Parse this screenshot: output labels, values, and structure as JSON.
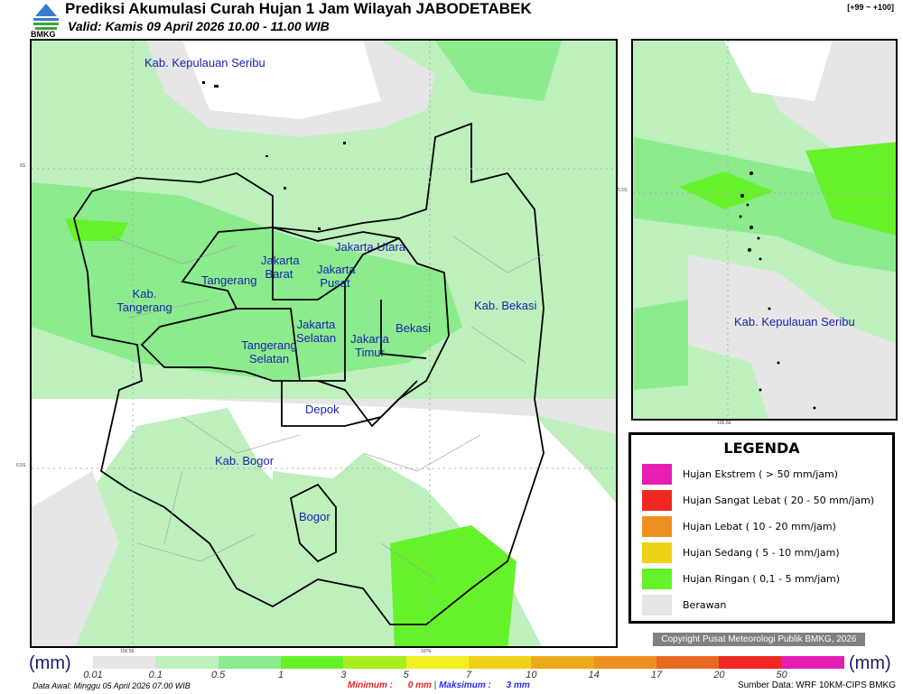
{
  "header": {
    "title": "Prediksi Akumulasi Curah Hujan 1 Jam Wilayah JABODETABEK",
    "valid": "Valid: Kamis 09 April 2026 10.00 - 11.00 WIB",
    "range_code": "[+99 ~ +100]",
    "logo_text": "BMKG"
  },
  "main_map": {
    "regions": [
      "Kab. Kepulauan Seribu",
      "Jakarta Utara",
      "Jakarta Barat",
      "Jakarta Pusat",
      "Tangerang",
      "Kab. Tangerang",
      "Kab. Bekasi",
      "Jakarta Selatan",
      "Jakarta Timur",
      "Bekasi",
      "Tangerang Selatan",
      "Depok",
      "Kab. Bogor",
      "Bogor"
    ],
    "lat_ticks": [
      "6S",
      "6.5S"
    ],
    "lon_ticks": [
      "106.5E",
      "107E"
    ]
  },
  "inset_map": {
    "region": "Kab. Kepulauan Seribu",
    "lat_tick": "5.5S",
    "lon_tick": "106.6E"
  },
  "legend": {
    "title": "LEGENDA",
    "items": [
      {
        "label": "Hujan Ekstrem ( > 50 mm/jam)",
        "color": "#e61eb4"
      },
      {
        "label": "Hujan Sangat Lebat ( 20 - 50 mm/jam)",
        "color": "#ee2820"
      },
      {
        "label": "Hujan Lebat ( 10 - 20 mm/jam)",
        "color": "#ee9020"
      },
      {
        "label": "Hujan Sedang ( 5 - 10 mm/jam)",
        "color": "#eed218"
      },
      {
        "label": "Hujan Ringan ( 0,1 - 5 mm/jam)",
        "color": "#66f22a"
      },
      {
        "label": "Berawan",
        "color": "#e6e6e6"
      }
    ]
  },
  "copyright": "Copyright Pusat Meteorologi Publik BMKG, 2026",
  "colorbar": {
    "unit": "(mm)",
    "ticks": [
      "0.01",
      "0.1",
      "0.5",
      "1",
      "3",
      "5",
      "7",
      "10",
      "14",
      "17",
      "20",
      "50"
    ],
    "colors": [
      "#e6e6e6",
      "#bdf0bd",
      "#8ceb8c",
      "#66f22a",
      "#a8ee1e",
      "#f0f020",
      "#eed218",
      "#eaaa1e",
      "#ee9020",
      "#e86a20",
      "#ee2820",
      "#e61eb4"
    ]
  },
  "footer": {
    "data_awal": "Data Awal: Minggu 05 April 2026 07.00 WIB",
    "minimum_label": "Minimum :",
    "minimum_value": "0 mm",
    "maksimum_label": "Maksimum :",
    "maksimum_value": "3 mm",
    "source": "Sumber Data: WRF 10KM-CIPS BMKG"
  }
}
